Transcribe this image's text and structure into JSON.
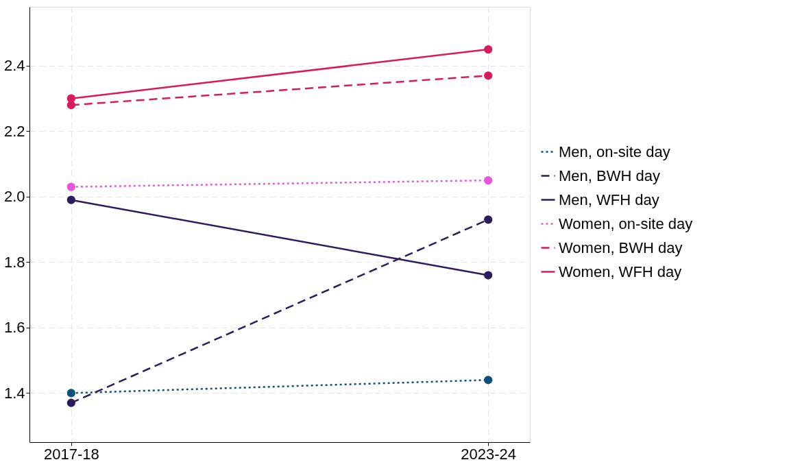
{
  "chart_data": {
    "type": "line",
    "categories": [
      "2017-18",
      "2023-24"
    ],
    "series": [
      {
        "name": "Men, on-site day",
        "color": "#0b4f7c",
        "line_style": "dotted",
        "values": [
          1.4,
          1.44
        ]
      },
      {
        "name": "Men, BWH day",
        "color": "#2d1b5c",
        "line_style": "dashed",
        "values": [
          1.37,
          1.93
        ]
      },
      {
        "name": "Men, WFH day",
        "color": "#2d1b5c",
        "line_style": "solid",
        "values": [
          1.99,
          1.76
        ]
      },
      {
        "name": "Women, on-site day",
        "color": "#e855dc",
        "line_style": "dotted",
        "values": [
          2.03,
          2.05
        ]
      },
      {
        "name": "Women, BWH day",
        "color": "#d81b5a",
        "line_style": "dashed",
        "values": [
          2.28,
          2.37
        ]
      },
      {
        "name": "Women, WFH day",
        "color": "#d81b5a",
        "line_style": "solid",
        "values": [
          2.3,
          2.45
        ]
      }
    ],
    "ylim": [
      1.25,
      2.58
    ],
    "yticks": [
      {
        "value": 1.4,
        "label": "1.4"
      },
      {
        "value": 1.6,
        "label": "1.6"
      },
      {
        "value": 1.8,
        "label": "1.8"
      },
      {
        "value": 2,
        "label": "2.0"
      },
      {
        "value": 2.2,
        "label": "2.2"
      },
      {
        "value": 2.4,
        "label": "2.4"
      }
    ],
    "grid": true,
    "legend": "right",
    "marker": "circle"
  }
}
